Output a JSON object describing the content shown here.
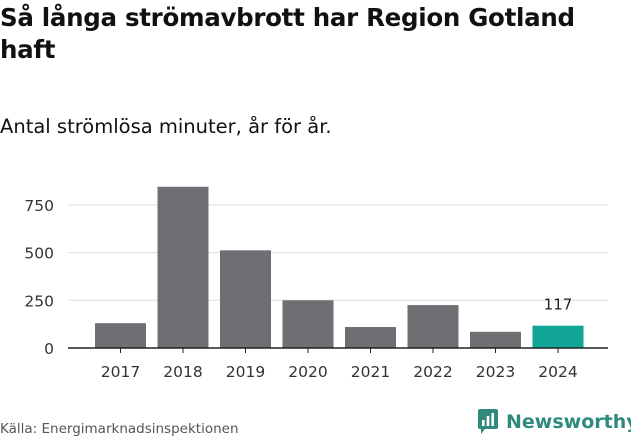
{
  "title": "Så långa strömavbrott har Region Gotland haft",
  "subtitle": "Antal strömlösa minuter, år för år.",
  "source": "Källa: Energimarknadsinspektionen",
  "brand": {
    "name": "Newsworthy",
    "icon": "newsworthy-logo-icon",
    "color": "#2f8a7c"
  },
  "colors": {
    "bar": "#6f6e73",
    "highlight": "#11a597",
    "grid": "#dddddd",
    "axis": "#222222"
  },
  "chart_data": {
    "type": "bar",
    "title": "Så långa strömavbrott har Region Gotland haft",
    "subtitle": "Antal strömlösa minuter, år för år.",
    "xlabel": "",
    "ylabel": "",
    "categories": [
      "2017",
      "2018",
      "2019",
      "2020",
      "2021",
      "2022",
      "2023",
      "2024"
    ],
    "values": [
      130,
      845,
      512,
      250,
      110,
      225,
      85,
      117
    ],
    "highlight_index": 7,
    "data_labels": [
      {
        "index": 7,
        "text": "117"
      }
    ],
    "yticks": [
      0,
      250,
      500,
      750
    ],
    "ylim": [
      0,
      870
    ],
    "grid": true,
    "legend": "none"
  }
}
